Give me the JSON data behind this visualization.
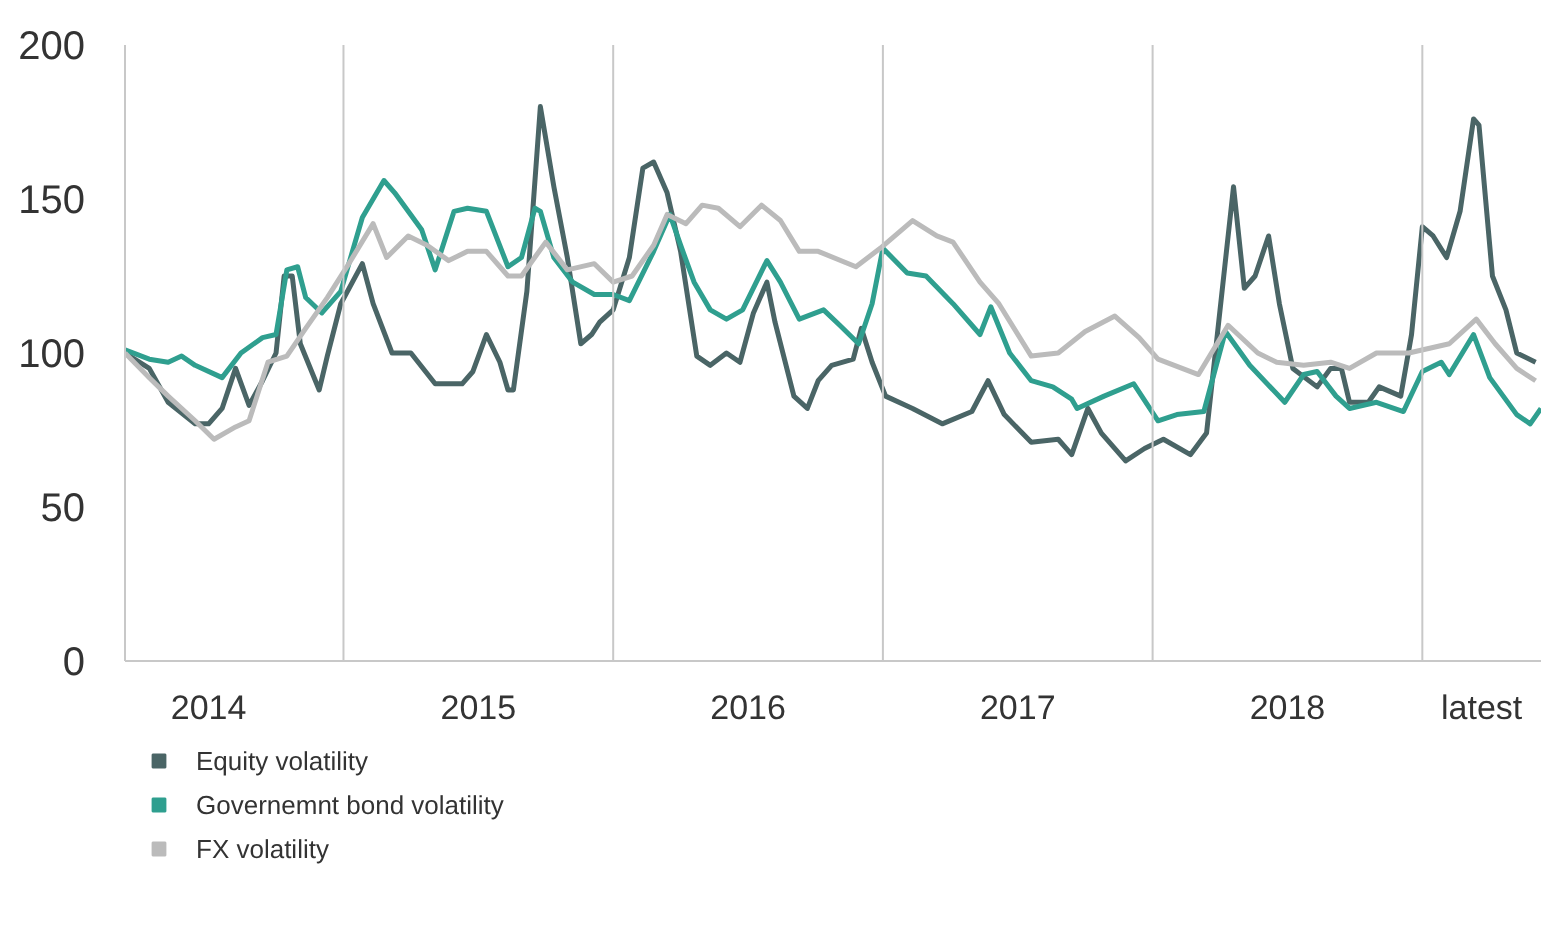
{
  "chart_data": {
    "type": "line",
    "xlim": [
      2014.19,
      2019.44
    ],
    "xticks": [
      {
        "value": 2014.5,
        "label": "2014"
      },
      {
        "value": 2015.5,
        "label": "2015"
      },
      {
        "value": 2016.5,
        "label": "2016"
      },
      {
        "value": 2017.5,
        "label": "2017"
      },
      {
        "value": 2018.5,
        "label": "2018"
      },
      {
        "value": 2019.22,
        "label": "latest"
      }
    ],
    "ylim": [
      0,
      200
    ],
    "yticks": [
      0,
      50,
      100,
      150,
      200
    ],
    "grid": false,
    "legend": "bottom left",
    "ref_lines": [
      {
        "axis": "x",
        "value": 2015,
        "color": "#c8c8c8"
      },
      {
        "axis": "x",
        "value": 2016,
        "color": "#c8c8c8"
      },
      {
        "axis": "x",
        "value": 2017,
        "color": "#c8c8c8"
      },
      {
        "axis": "x",
        "value": 2018,
        "color": "#c8c8c8"
      },
      {
        "axis": "x",
        "value": 2019,
        "color": "#c8c8c8"
      }
    ],
    "series": [
      {
        "name": "Equity volatility",
        "color": "#4a6566",
        "x": [
          2014.19,
          2014.28,
          2014.35,
          2014.45,
          2014.5,
          2014.55,
          2014.6,
          2014.65,
          2014.7,
          2014.75,
          2014.78,
          2014.81,
          2014.84,
          2014.91,
          2014.94,
          2014.99,
          2015.07,
          2015.11,
          2015.18,
          2015.25,
          2015.34,
          2015.44,
          2015.48,
          2015.53,
          2015.58,
          2015.61,
          2015.63,
          2015.68,
          2015.73,
          2015.78,
          2015.83,
          2015.88,
          2015.92,
          2015.95,
          2016.0,
          2016.06,
          2016.11,
          2016.15,
          2016.2,
          2016.25,
          2016.31,
          2016.36,
          2016.42,
          2016.47,
          2016.52,
          2016.57,
          2016.6,
          2016.67,
          2016.72,
          2016.76,
          2016.81,
          2016.89,
          2016.92,
          2016.96,
          2017.01,
          2017.11,
          2017.22,
          2017.33,
          2017.39,
          2017.45,
          2017.55,
          2017.65,
          2017.7,
          2017.76,
          2017.81,
          2017.9,
          2017.97,
          2018.04,
          2018.14,
          2018.2,
          2018.24,
          2018.3,
          2018.34,
          2018.38,
          2018.43,
          2018.47,
          2018.52,
          2018.61,
          2018.66,
          2018.7,
          2018.73,
          2018.8,
          2018.84,
          2018.92,
          2018.96,
          2019.0,
          2019.04,
          2019.09,
          2019.14,
          2019.19,
          2019.21,
          2019.26,
          2019.31,
          2019.35,
          2019.42
        ],
        "values": [
          100,
          95,
          84,
          77,
          77,
          82,
          95,
          83,
          91,
          100,
          125,
          125,
          103,
          88,
          99,
          116,
          129,
          116,
          100,
          100,
          90,
          90,
          94,
          106,
          97,
          88,
          88,
          120,
          180,
          154,
          131,
          103,
          106,
          110,
          114,
          131,
          160,
          162,
          152,
          133,
          99,
          96,
          100,
          97,
          113,
          123,
          110,
          86,
          82,
          91,
          96,
          98,
          108,
          97,
          86,
          82,
          77,
          81,
          91,
          80,
          71,
          72,
          67,
          82,
          74,
          65,
          69,
          72,
          67,
          74,
          106,
          154,
          121,
          125,
          138,
          116,
          95,
          89,
          95,
          95,
          84,
          84,
          89,
          86,
          106,
          141,
          138,
          131,
          146,
          176,
          174,
          125,
          114,
          100,
          97
        ]
      },
      {
        "name": "Governemnt bond volatility",
        "color": "#2f9f8f",
        "x": [
          2014.19,
          2014.28,
          2014.35,
          2014.4,
          2014.45,
          2014.55,
          2014.62,
          2014.7,
          2014.75,
          2014.79,
          2014.83,
          2014.86,
          2014.92,
          2014.99,
          2015.07,
          2015.15,
          2015.19,
          2015.29,
          2015.34,
          2015.41,
          2015.46,
          2015.53,
          2015.61,
          2015.66,
          2015.71,
          2015.73,
          2015.78,
          2015.85,
          2015.93,
          2016.0,
          2016.06,
          2016.15,
          2016.21,
          2016.25,
          2016.3,
          2016.36,
          2016.42,
          2016.48,
          2016.57,
          2016.62,
          2016.69,
          2016.78,
          2016.84,
          2016.91,
          2016.96,
          2017.0,
          2017.09,
          2017.16,
          2017.26,
          2017.36,
          2017.4,
          2017.47,
          2017.55,
          2017.63,
          2017.7,
          2017.72,
          2017.82,
          2017.93,
          2018.02,
          2018.09,
          2018.19,
          2018.27,
          2018.36,
          2018.49,
          2018.56,
          2018.61,
          2018.68,
          2018.73,
          2018.83,
          2018.93,
          2019.0,
          2019.07,
          2019.1,
          2019.19,
          2019.25,
          2019.35,
          2019.4,
          2019.44
        ],
        "values": [
          101,
          98,
          97,
          99,
          96,
          92,
          100,
          105,
          106,
          127,
          128,
          118,
          113,
          120,
          144,
          156,
          152,
          140,
          127,
          146,
          147,
          146,
          128,
          131,
          147,
          146,
          131,
          123,
          119,
          119,
          117,
          133,
          145,
          135,
          123,
          114,
          111,
          114,
          130,
          123,
          111,
          114,
          109,
          103,
          116,
          134,
          126,
          125,
          116,
          106,
          115,
          100,
          91,
          89,
          85,
          82,
          86,
          90,
          78,
          80,
          81,
          107,
          96,
          84,
          93,
          94,
          86,
          82,
          84,
          81,
          94,
          97,
          93,
          106,
          92,
          80,
          77,
          82
        ]
      },
      {
        "name": "FX volatility",
        "color": "#bbbbbb",
        "x": [
          2014.19,
          2014.28,
          2014.35,
          2014.45,
          2014.52,
          2014.6,
          2014.65,
          2014.72,
          2014.79,
          2014.86,
          2014.94,
          2015.02,
          2015.11,
          2015.16,
          2015.24,
          2015.31,
          2015.39,
          2015.46,
          2015.53,
          2015.61,
          2015.66,
          2015.75,
          2015.83,
          2015.93,
          2016.0,
          2016.07,
          2016.15,
          2016.2,
          2016.27,
          2016.33,
          2016.39,
          2016.47,
          2016.55,
          2016.62,
          2016.69,
          2016.76,
          2016.9,
          2016.99,
          2017.11,
          2017.2,
          2017.26,
          2017.36,
          2017.43,
          2017.55,
          2017.65,
          2017.75,
          2017.86,
          2017.95,
          2018.02,
          2018.17,
          2018.28,
          2018.39,
          2018.46,
          2018.56,
          2018.66,
          2018.73,
          2018.83,
          2018.95,
          2019.1,
          2019.2,
          2019.27,
          2019.35,
          2019.42
        ],
        "values": [
          100,
          92,
          86,
          78,
          72,
          76,
          78,
          97,
          99,
          108,
          118,
          129,
          142,
          131,
          138,
          135,
          130,
          133,
          133,
          125,
          125,
          136,
          127,
          129,
          123,
          125,
          135,
          145,
          142,
          148,
          147,
          141,
          148,
          143,
          133,
          133,
          128,
          134,
          143,
          138,
          136,
          123,
          116,
          99,
          100,
          107,
          112,
          105,
          98,
          93,
          109,
          100,
          97,
          96,
          97,
          95,
          100,
          100,
          103,
          111,
          103,
          95,
          91
        ]
      }
    ]
  }
}
